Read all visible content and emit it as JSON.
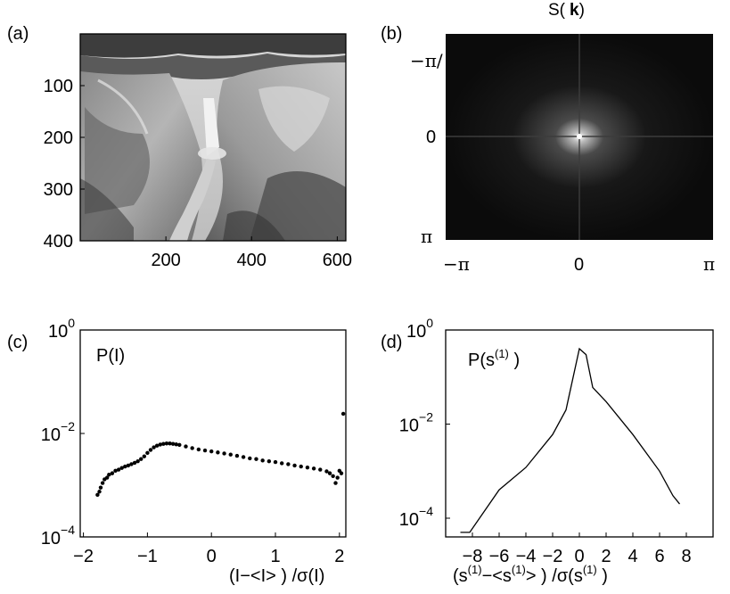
{
  "panels": {
    "a": {
      "tag": "(a)",
      "yticks": [
        "100",
        "200",
        "300",
        "400"
      ],
      "xticks": [
        "200",
        "400",
        "600"
      ]
    },
    "b": {
      "tag": "(b)",
      "title_main": "S(",
      "title_bold": "k",
      "title_close": ")",
      "y_top": "−π/",
      "y_mid": "0",
      "y_bot": "π",
      "x_left": "−π",
      "x_mid": "0",
      "x_right": "π"
    },
    "c": {
      "tag": "(c)",
      "annotation": "P(I)",
      "ytick_base": "10",
      "ytick_exps": [
        "0",
        "−2",
        "−4"
      ],
      "xticks": [
        "−2",
        "−1",
        "0",
        "1",
        "2"
      ],
      "xlabel": "(I−<I> ) /σ(I)"
    },
    "d": {
      "tag": "(d)",
      "annotation_base": "P(s",
      "annotation_sup": "(1)",
      "annotation_close": " )",
      "ytick_base": "10",
      "ytick_exps": [
        "0",
        "−2",
        "−4"
      ],
      "xticks": [
        "−8",
        "−6",
        "−4",
        "−2",
        "0",
        "2",
        "4",
        "6",
        "8"
      ],
      "xlabel_parts": [
        "(s",
        "(1)",
        "−<s",
        "(1)",
        "> ) /σ(s",
        "(1)",
        " )"
      ]
    }
  },
  "chart_data": [
    {
      "panel": "a",
      "type": "heatmap",
      "xlim": [
        0,
        620
      ],
      "ylim": [
        400,
        0
      ],
      "xticks": [
        200,
        400,
        600
      ],
      "yticks": [
        100,
        200,
        300,
        400
      ]
    },
    {
      "panel": "b",
      "type": "heatmap",
      "title": "S( k)",
      "xlim": [
        -3.14159,
        3.14159
      ],
      "ylim": [
        -3.14159,
        3.14159
      ]
    },
    {
      "panel": "c",
      "type": "scatter",
      "yscale": "log",
      "xlim": [
        -2.05,
        2.1
      ],
      "ylim": [
        0.0001,
        1
      ],
      "x": [
        -1.78,
        -1.75,
        -1.73,
        -1.7,
        -1.67,
        -1.63,
        -1.6,
        -1.55,
        -1.5,
        -1.45,
        -1.4,
        -1.35,
        -1.3,
        -1.25,
        -1.2,
        -1.15,
        -1.1,
        -1.05,
        -1.0,
        -0.95,
        -0.9,
        -0.85,
        -0.8,
        -0.75,
        -0.7,
        -0.65,
        -0.6,
        -0.55,
        -0.5,
        -0.4,
        -0.3,
        -0.2,
        -0.1,
        0.0,
        0.1,
        0.2,
        0.3,
        0.4,
        0.5,
        0.6,
        0.7,
        0.8,
        0.9,
        1.0,
        1.1,
        1.2,
        1.3,
        1.4,
        1.5,
        1.6,
        1.7,
        1.8,
        1.85,
        1.9,
        1.94,
        1.97,
        2.0,
        2.03,
        2.06
      ],
      "y": [
        0.00065,
        0.00075,
        0.0009,
        0.0011,
        0.0013,
        0.0014,
        0.0016,
        0.0017,
        0.0019,
        0.002,
        0.00215,
        0.0023,
        0.0024,
        0.00255,
        0.0027,
        0.0029,
        0.0032,
        0.0036,
        0.0042,
        0.0048,
        0.0054,
        0.0058,
        0.0061,
        0.0063,
        0.0064,
        0.0064,
        0.0063,
        0.00615,
        0.006,
        0.0056,
        0.0052,
        0.0049,
        0.0047,
        0.0045,
        0.0043,
        0.0041,
        0.0039,
        0.0037,
        0.0035,
        0.0033,
        0.0032,
        0.003,
        0.0029,
        0.0028,
        0.00265,
        0.00255,
        0.0024,
        0.0023,
        0.0022,
        0.0021,
        0.002,
        0.00185,
        0.0017,
        0.0015,
        0.0011,
        0.0014,
        0.0019,
        0.0017,
        0.024
      ]
    },
    {
      "panel": "d",
      "type": "line",
      "yscale": "log",
      "xlim": [
        -10,
        10
      ],
      "ylim": [
        4e-05,
        1
      ],
      "xticks": [
        -8,
        -6,
        -4,
        -2,
        0,
        2,
        4,
        6,
        8
      ],
      "x": [
        -8.9,
        -8.2,
        -6.0,
        -4.0,
        -2.0,
        -1.0,
        0.0,
        0.5,
        1.0,
        2.0,
        4.0,
        6.0,
        7.0,
        7.5
      ],
      "y": [
        5e-05,
        5e-05,
        0.0004,
        0.0012,
        0.006,
        0.02,
        0.4,
        0.3,
        0.06,
        0.03,
        0.006,
        0.001,
        0.0003,
        0.0002
      ]
    }
  ]
}
